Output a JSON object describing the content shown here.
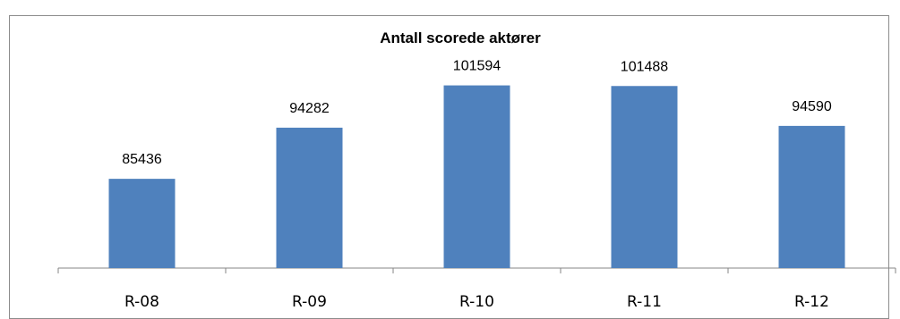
{
  "chart_data": {
    "type": "bar",
    "title": "Antall scorede aktører",
    "categories": [
      "R-08",
      "R-09",
      "R-10",
      "R-11",
      "R-12"
    ],
    "values": [
      85436,
      94282,
      101594,
      101488,
      94590
    ],
    "xlabel": "",
    "ylabel": "",
    "ylim": [
      70000,
      104000
    ],
    "grid": false,
    "legend": "none",
    "bar_color": "#4f81bd",
    "axis_color": "#868686",
    "data_labels": true
  }
}
